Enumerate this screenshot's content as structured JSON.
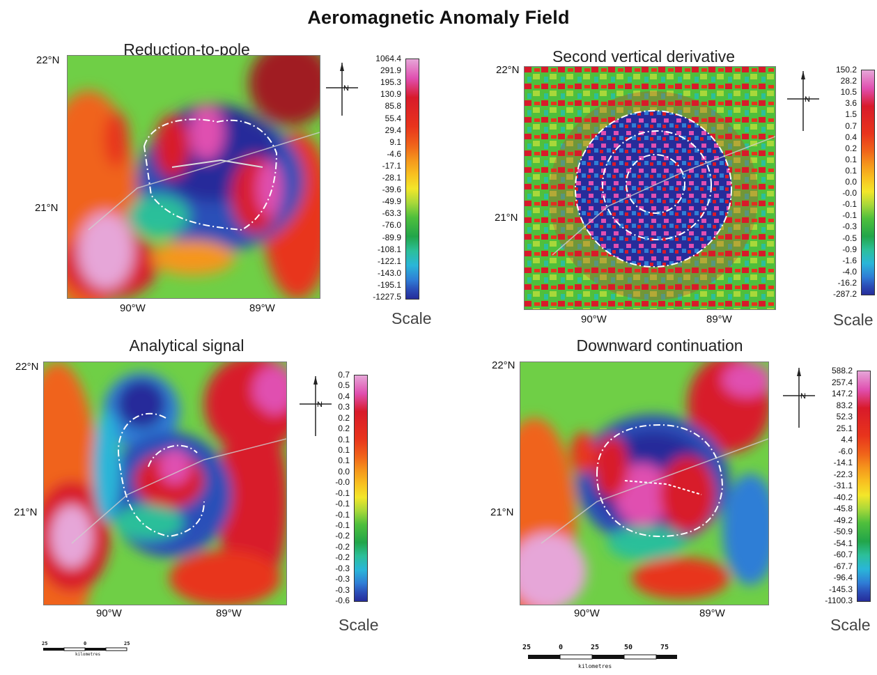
{
  "title": "Aeromagnetic Anomaly Field",
  "panels": [
    {
      "id": "rtp",
      "title": "Reduction-to-pole",
      "lat_top": "22°N",
      "lat_mid": "21°N",
      "lon_left": "90°W",
      "lon_right": "89°W",
      "scale_word": "Scale",
      "scale_ticks": [
        "1064.4",
        "291.9",
        "195.3",
        "130.9",
        "85.8",
        "55.4",
        "29.4",
        "9.1",
        "-4.6",
        "-17.1",
        "-28.1",
        "-39.6",
        "-49.9",
        "-63.3",
        "-76.0",
        "-89.9",
        "-108.1",
        "-122.1",
        "-143.0",
        "-195.1",
        "-1227.5"
      ]
    },
    {
      "id": "svd",
      "title": "Second vertical derivative",
      "lat_top": "22°N",
      "lat_mid": "21°N",
      "lon_left": "90°W",
      "lon_right": "89°W",
      "scale_word": "Scale",
      "scale_ticks": [
        "150.2",
        "28.2",
        "10.5",
        "3.6",
        "1.5",
        "0.7",
        "0.4",
        "0.2",
        "0.1",
        "0.1",
        "0.0",
        "-0.0",
        "-0.1",
        "-0.1",
        "-0.3",
        "-0.5",
        "-0.9",
        "-1.6",
        "-4.0",
        "-16.2",
        "-287.2"
      ]
    },
    {
      "id": "as",
      "title": "Analytical signal",
      "lat_top": "22°N",
      "lat_mid": "21°N",
      "lon_left": "90°W",
      "lon_right": "89°W",
      "scale_word": "Scale",
      "scale_ticks": [
        "0.7",
        "0.5",
        "0.4",
        "0.3",
        "0.2",
        "0.2",
        "0.1",
        "0.1",
        "0.1",
        "0.0",
        "-0.0",
        "-0.1",
        "-0.1",
        "-0.1",
        "-0.1",
        "-0.2",
        "-0.2",
        "-0.2",
        "-0.3",
        "-0.3",
        "-0.3",
        "-0.6"
      ]
    },
    {
      "id": "dc",
      "title": "Downward continuation",
      "lat_top": "22°N",
      "lat_mid": "21°N",
      "lon_left": "90°W",
      "lon_right": "89°W",
      "scale_word": "Scale",
      "scale_ticks": [
        "588.2",
        "257.4",
        "147.2",
        "83.2",
        "52.3",
        "25.1",
        "4.4",
        "-6.0",
        "-14.1",
        "-22.3",
        "-31.1",
        "-40.2",
        "-45.8",
        "-49.2",
        "-50.9",
        "-54.1",
        "-60.7",
        "-67.7",
        "-96.4",
        "-145.3",
        "-1100.3"
      ]
    }
  ],
  "north_arrow_label": "N",
  "scalebar_left": {
    "labels": [
      "25",
      "0",
      "25"
    ],
    "unit": "kilometres"
  },
  "scalebar_right": {
    "labels": [
      "25",
      "0",
      "25",
      "50",
      "75"
    ],
    "unit": "kilometres"
  },
  "colors": {
    "ramp": [
      "#e6a6d8",
      "#e04fb0",
      "#d81a2a",
      "#e8341c",
      "#f0641a",
      "#f5961c",
      "#f8c020",
      "#f3e62a",
      "#a8d83a",
      "#4fbf3c",
      "#22a54a",
      "#2cbf9a",
      "#2ab6d8",
      "#2f7ed6",
      "#2b4fb8",
      "#262c9a"
    ]
  }
}
